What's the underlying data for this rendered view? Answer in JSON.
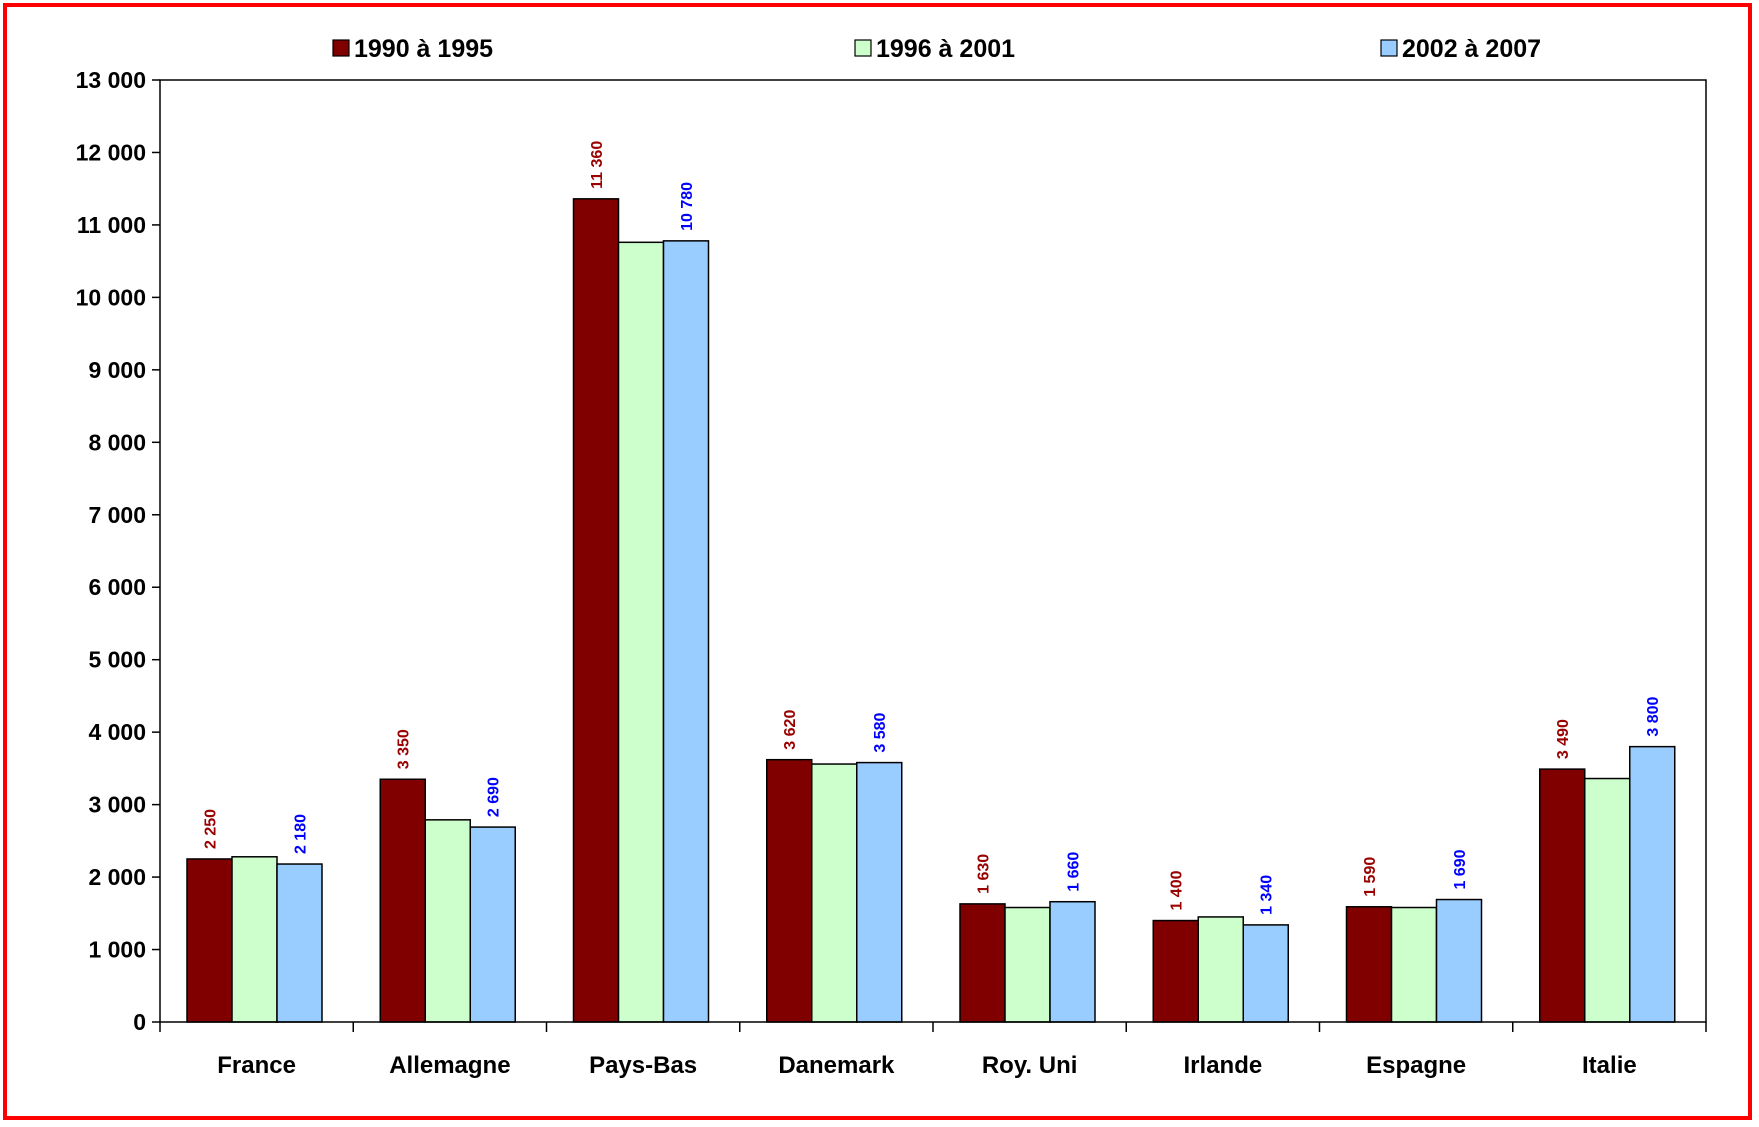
{
  "chart_data": {
    "type": "bar",
    "title": "",
    "xlabel": "",
    "ylabel": "",
    "ylim": [
      0,
      13000
    ],
    "yticks": [
      0,
      1000,
      2000,
      3000,
      4000,
      5000,
      6000,
      7000,
      8000,
      9000,
      10000,
      11000,
      12000,
      13000
    ],
    "ytick_labels": [
      "0",
      "1 000",
      "2 000",
      "3 000",
      "4 000",
      "5 000",
      "6 000",
      "7 000",
      "8 000",
      "9 000",
      "10 000",
      "11 000",
      "12 000",
      "13 000"
    ],
    "grid": false,
    "legend_position": "top",
    "categories": [
      "France",
      "Allemagne",
      "Pays-Bas",
      "Danemark",
      "Roy. Uni",
      "Irlande",
      "Espagne",
      "Italie"
    ],
    "series": [
      {
        "name": "1990 à 1995",
        "color": "#800000",
        "label_color": "#990000",
        "values": [
          2250,
          3350,
          11360,
          3620,
          1630,
          1400,
          1590,
          3490
        ],
        "data_labels": [
          "2 250",
          "3 350",
          "11 360",
          "3 620",
          "1 630",
          "1 400",
          "1 590",
          "3 490"
        ]
      },
      {
        "name": "1996 à 2001",
        "color": "#ccffcc",
        "label_color": "",
        "values": [
          2280,
          2790,
          10760,
          3560,
          1580,
          1450,
          1580,
          3360
        ],
        "data_labels": []
      },
      {
        "name": "2002 à 2007",
        "color": "#99ccff",
        "label_color": "#0000ff",
        "values": [
          2180,
          2690,
          10780,
          3580,
          1660,
          1340,
          1690,
          3800
        ],
        "data_labels": [
          "2 180",
          "2 690",
          "10 780",
          "3 580",
          "1 660",
          "1 340",
          "1 690",
          "3 800"
        ]
      }
    ]
  }
}
